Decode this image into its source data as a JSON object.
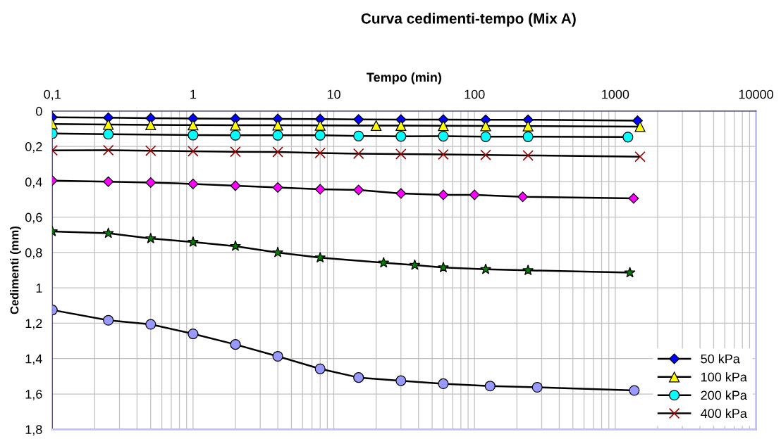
{
  "chart_data": {
    "type": "line",
    "title": "Curva cedimenti-tempo (Mix A)",
    "xlabel": "Tempo (min)",
    "ylabel": "Cedimenti (mm)",
    "log": "x",
    "xlim": [
      0.1,
      10000
    ],
    "ylim": [
      1.8,
      0
    ],
    "xticks": [
      {
        "value": 0.1,
        "label": "0,1"
      },
      1,
      10,
      100,
      1000,
      10000
    ],
    "yticks": [
      0,
      {
        "value": 0.2,
        "label": "0,2"
      },
      {
        "value": 0.4,
        "label": "0,4"
      },
      {
        "value": 0.6,
        "label": "0,6"
      },
      {
        "value": 0.8,
        "label": "0,8"
      },
      1,
      {
        "value": 1.2,
        "label": "1,2"
      },
      {
        "value": 1.4,
        "label": "1,4"
      },
      {
        "value": 1.6,
        "label": "1,6"
      },
      {
        "value": 1.8,
        "label": "1,8"
      }
    ],
    "grid": true,
    "legend": "bottom right",
    "line_style": "solid",
    "series": [
      {
        "name": "50 kPa",
        "color": "#0000ff",
        "marker": "diamond",
        "x": [
          0.1,
          0.25,
          0.5,
          1,
          2,
          4,
          8,
          15,
          30,
          60,
          120,
          240,
          1440
        ],
        "values": [
          0.035,
          0.037,
          0.04,
          0.042,
          0.043,
          0.044,
          0.045,
          0.047,
          0.048,
          0.048,
          0.049,
          0.049,
          0.054
        ]
      },
      {
        "name": "100 kPa",
        "color": "#ffff00",
        "marker": "triangle",
        "x": [
          0.1,
          0.25,
          0.5,
          1,
          2,
          4,
          8,
          20,
          30,
          60,
          120,
          240,
          1500
        ],
        "values": [
          0.073,
          0.076,
          0.078,
          0.079,
          0.08,
          0.08,
          0.081,
          0.082,
          0.082,
          0.083,
          0.084,
          0.085,
          0.088
        ]
      },
      {
        "name": "200 kPa",
        "color": "#00ffff",
        "marker": "circle",
        "x": [
          0.1,
          0.25,
          1,
          2,
          4,
          8,
          15,
          30,
          60,
          120,
          240,
          1230
        ],
        "values": [
          0.127,
          0.131,
          0.136,
          0.137,
          0.137,
          0.137,
          0.141,
          0.143,
          0.142,
          0.145,
          0.145,
          0.147
        ]
      },
      {
        "name": "400 kPa",
        "color": "#990000",
        "marker": "cross",
        "x": [
          0.1,
          0.25,
          0.5,
          1,
          2,
          4,
          8,
          15,
          30,
          60,
          120,
          240,
          1500
        ],
        "values": [
          0.222,
          0.221,
          0.224,
          0.227,
          0.23,
          0.231,
          0.237,
          0.241,
          0.243,
          0.245,
          0.248,
          0.251,
          0.258
        ]
      },
      {
        "color": "#ff00ff",
        "marker": "diamond",
        "x": [
          0.1,
          0.25,
          0.5,
          1,
          2,
          4,
          8,
          15,
          30,
          60,
          100,
          220,
          1350
        ],
        "values": [
          0.393,
          0.399,
          0.404,
          0.412,
          0.422,
          0.432,
          0.442,
          0.446,
          0.466,
          0.474,
          0.474,
          0.485,
          0.494
        ]
      },
      {
        "color": "#008000",
        "marker": "star",
        "x": [
          0.1,
          0.25,
          0.5,
          1,
          2,
          4,
          8,
          22.6,
          37.6,
          60,
          120,
          240,
          1270
        ],
        "values": [
          0.681,
          0.691,
          0.721,
          0.741,
          0.764,
          0.8,
          0.829,
          0.858,
          0.871,
          0.885,
          0.895,
          0.901,
          0.914
        ]
      },
      {
        "color": "#9999ff",
        "marker": "circle",
        "x": [
          0.1,
          0.25,
          0.5,
          1,
          2,
          4,
          8,
          15,
          30,
          60,
          129,
          279,
          1365
        ],
        "values": [
          1.125,
          1.183,
          1.206,
          1.26,
          1.32,
          1.387,
          1.458,
          1.507,
          1.525,
          1.542,
          1.555,
          1.562,
          1.58
        ]
      }
    ]
  }
}
